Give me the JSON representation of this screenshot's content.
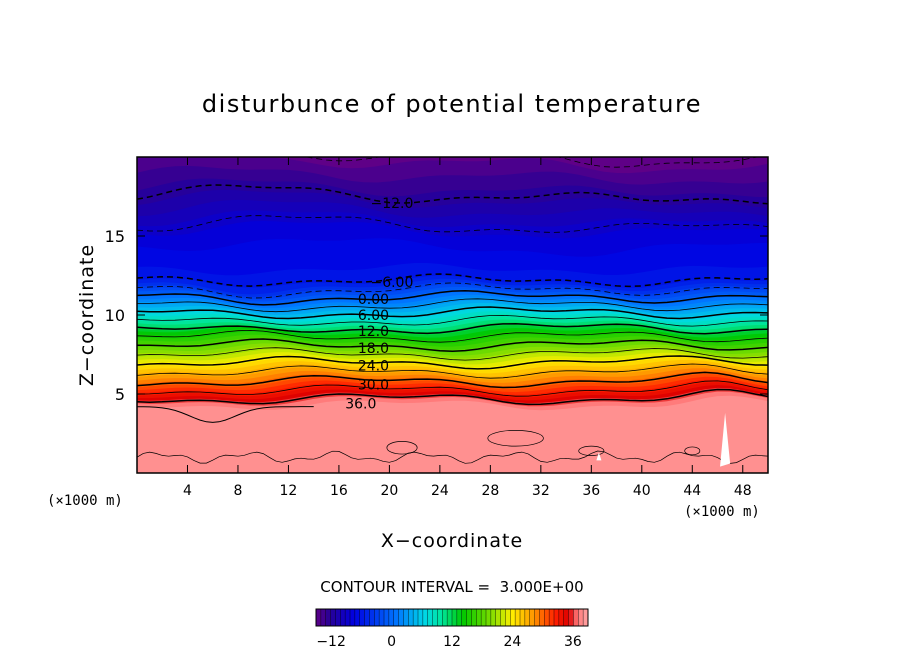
{
  "chart_data": {
    "type": "contour",
    "title": "disturbunce of potential temperature",
    "xlabel": "X−coordinate",
    "ylabel": "Z−coordinate",
    "x_unit": "(×1000 m)",
    "y_unit": "(×1000 m)",
    "xlim": [
      0,
      50
    ],
    "ylim": [
      0,
      20
    ],
    "x_ticks": [
      4,
      8,
      12,
      16,
      20,
      24,
      28,
      32,
      36,
      40,
      44,
      48
    ],
    "y_ticks": [
      5,
      10,
      15
    ],
    "contour_interval_text": "CONTOUR INTERVAL =  3.000E+00",
    "contour_interval": 3.0,
    "contour_labels": [
      {
        "text": "−12.0",
        "x": 18.5,
        "z": 17.1
      },
      {
        "text": "−6.00",
        "x": 18.5,
        "z": 12.1
      },
      {
        "text": "0.00",
        "x": 17.5,
        "z": 11.0
      },
      {
        "text": "6.00",
        "x": 17.5,
        "z": 10.0
      },
      {
        "text": "12.0",
        "x": 17.5,
        "z": 9.0
      },
      {
        "text": "18.0",
        "x": 17.5,
        "z": 7.9
      },
      {
        "text": "24.0",
        "x": 17.5,
        "z": 6.8
      },
      {
        "text": "30.0",
        "x": 17.5,
        "z": 5.6
      },
      {
        "text": "36.0",
        "x": 16.5,
        "z": 4.4
      }
    ],
    "profile_z": [
      0,
      4.2,
      4.7,
      5.6,
      6.8,
      7.9,
      9.0,
      10.0,
      11.0,
      11.8,
      12.2,
      15.0,
      17.5,
      20.0
    ],
    "profile_value": [
      38,
      38,
      36,
      31,
      25,
      19,
      13,
      7,
      1,
      -4,
      -6,
      -8,
      -12,
      -15
    ],
    "colorbar": {
      "min": -15,
      "max": 39,
      "tick_labels": [
        "−12",
        "0",
        "12",
        "24",
        "36"
      ],
      "tick_values": [
        -12,
        0,
        12,
        24,
        36
      ]
    }
  }
}
